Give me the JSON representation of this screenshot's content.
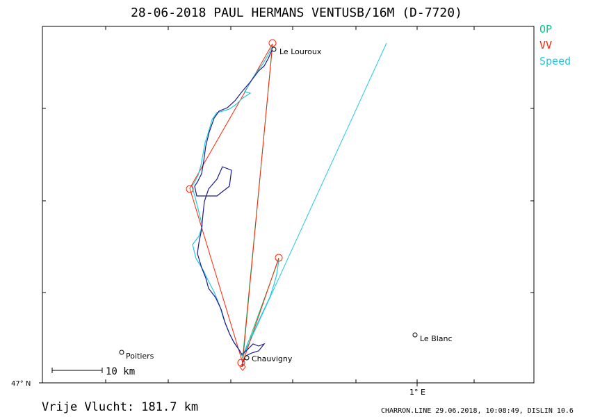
{
  "title": "28-06-2018   PAUL HERMANS   VENTUSB/16M (D-7720)",
  "legend": [
    {
      "label": "OP",
      "color": "#00cc88"
    },
    {
      "label": "VV",
      "color": "#ff2200"
    },
    {
      "label": "Speed",
      "color": "#22c8dd"
    }
  ],
  "places": [
    {
      "name": "Le Louroux"
    },
    {
      "name": "Chauvigny"
    },
    {
      "name": "Poitiers"
    },
    {
      "name": "Le Blanc"
    }
  ],
  "scale_bar_label": "10  km",
  "lat_label": "47° N",
  "lon_label": "1° E",
  "footer_distance": "Vrije Vlucht:  181.7 km",
  "footer_info": "CHARRON.LINE 29.06.2018, 10:08:49, DISLIN 10.6",
  "colors": {
    "track_dark": "#1a1a8c",
    "track_light": "#22c8dd",
    "frame": "#000000"
  }
}
